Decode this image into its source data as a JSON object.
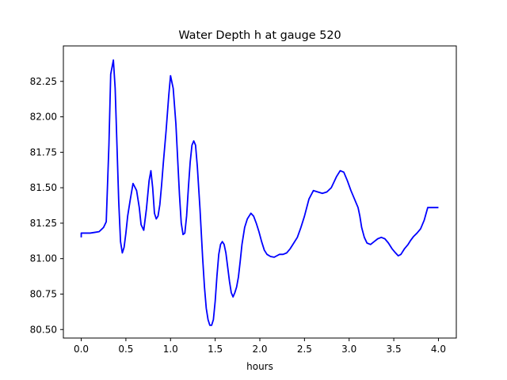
{
  "chart_data": {
    "type": "line",
    "title": "Water Depth h at gauge 520",
    "xlabel": "hours",
    "ylabel": "",
    "xlim": [
      -0.2,
      4.2
    ],
    "ylim": [
      80.44,
      82.5
    ],
    "x_ticks": [
      0.0,
      0.5,
      1.0,
      1.5,
      2.0,
      2.5,
      3.0,
      3.5,
      4.0
    ],
    "x_tick_labels": [
      "0.0",
      "0.5",
      "1.0",
      "1.5",
      "2.0",
      "2.5",
      "3.0",
      "3.5",
      "4.0"
    ],
    "y_ticks": [
      80.5,
      80.75,
      81.0,
      81.25,
      81.5,
      81.75,
      82.0,
      82.25
    ],
    "y_tick_labels": [
      "80.50",
      "80.75",
      "81.00",
      "81.25",
      "81.50",
      "81.75",
      "82.00",
      "82.25"
    ],
    "grid": false,
    "line_color": "#0000ff",
    "series": [
      {
        "x": [
          0.0,
          0.0,
          0.05,
          0.1,
          0.15,
          0.2,
          0.25,
          0.28,
          0.31,
          0.33,
          0.36,
          0.38,
          0.4,
          0.42,
          0.44,
          0.46,
          0.48,
          0.5,
          0.52,
          0.55,
          0.58,
          0.62,
          0.65,
          0.67,
          0.7,
          0.73,
          0.76,
          0.78,
          0.8,
          0.82,
          0.84,
          0.86,
          0.88,
          0.9,
          0.92,
          0.95,
          0.98,
          1.0,
          1.03,
          1.06,
          1.08,
          1.1,
          1.12,
          1.14,
          1.16,
          1.18,
          1.2,
          1.22,
          1.24,
          1.26,
          1.28,
          1.3,
          1.33,
          1.36,
          1.38,
          1.4,
          1.42,
          1.44,
          1.46,
          1.48,
          1.5,
          1.52,
          1.54,
          1.56,
          1.58,
          1.6,
          1.62,
          1.64,
          1.66,
          1.68,
          1.7,
          1.72,
          1.74,
          1.76,
          1.78,
          1.8,
          1.83,
          1.86,
          1.88,
          1.9,
          1.93,
          1.96,
          1.99,
          2.02,
          2.05,
          2.08,
          2.12,
          2.16,
          2.19,
          2.22,
          2.26,
          2.3,
          2.34,
          2.38,
          2.42,
          2.46,
          2.5,
          2.55,
          2.6,
          2.65,
          2.7,
          2.75,
          2.8,
          2.83,
          2.86,
          2.9,
          2.94,
          2.98,
          3.02,
          3.06,
          3.1,
          3.12,
          3.14,
          3.17,
          3.2,
          3.24,
          3.28,
          3.32,
          3.36,
          3.4,
          3.44,
          3.48,
          3.52,
          3.55,
          3.58,
          3.62,
          3.66,
          3.69,
          3.72,
          3.76,
          3.8,
          3.84,
          3.88,
          3.92,
          3.96,
          4.0
        ],
        "y": [
          81.15,
          81.18,
          81.18,
          81.18,
          81.185,
          81.19,
          81.22,
          81.26,
          81.8,
          82.3,
          82.4,
          82.2,
          81.8,
          81.4,
          81.12,
          81.04,
          81.08,
          81.18,
          81.3,
          81.42,
          81.53,
          81.48,
          81.36,
          81.24,
          81.2,
          81.35,
          81.55,
          81.62,
          81.5,
          81.32,
          81.28,
          81.3,
          81.38,
          81.52,
          81.68,
          81.9,
          82.15,
          82.29,
          82.2,
          81.95,
          81.7,
          81.45,
          81.25,
          81.17,
          81.18,
          81.3,
          81.5,
          81.68,
          81.8,
          81.83,
          81.8,
          81.65,
          81.35,
          81.0,
          80.8,
          80.65,
          80.57,
          80.53,
          80.53,
          80.57,
          80.7,
          80.88,
          81.03,
          81.1,
          81.12,
          81.1,
          81.04,
          80.94,
          80.84,
          80.76,
          80.73,
          80.76,
          80.8,
          80.87,
          80.98,
          81.1,
          81.22,
          81.28,
          81.3,
          81.32,
          81.3,
          81.25,
          81.19,
          81.12,
          81.06,
          81.03,
          81.015,
          81.01,
          81.02,
          81.03,
          81.03,
          81.04,
          81.07,
          81.11,
          81.15,
          81.22,
          81.3,
          81.42,
          81.48,
          81.47,
          81.46,
          81.47,
          81.5,
          81.54,
          81.58,
          81.62,
          81.61,
          81.55,
          81.48,
          81.42,
          81.36,
          81.3,
          81.22,
          81.15,
          81.11,
          81.1,
          81.12,
          81.14,
          81.15,
          81.14,
          81.11,
          81.07,
          81.04,
          81.02,
          81.03,
          81.07,
          81.1,
          81.13,
          81.155,
          81.18,
          81.21,
          81.27,
          81.36,
          81.36,
          81.36,
          81.36
        ]
      }
    ]
  }
}
